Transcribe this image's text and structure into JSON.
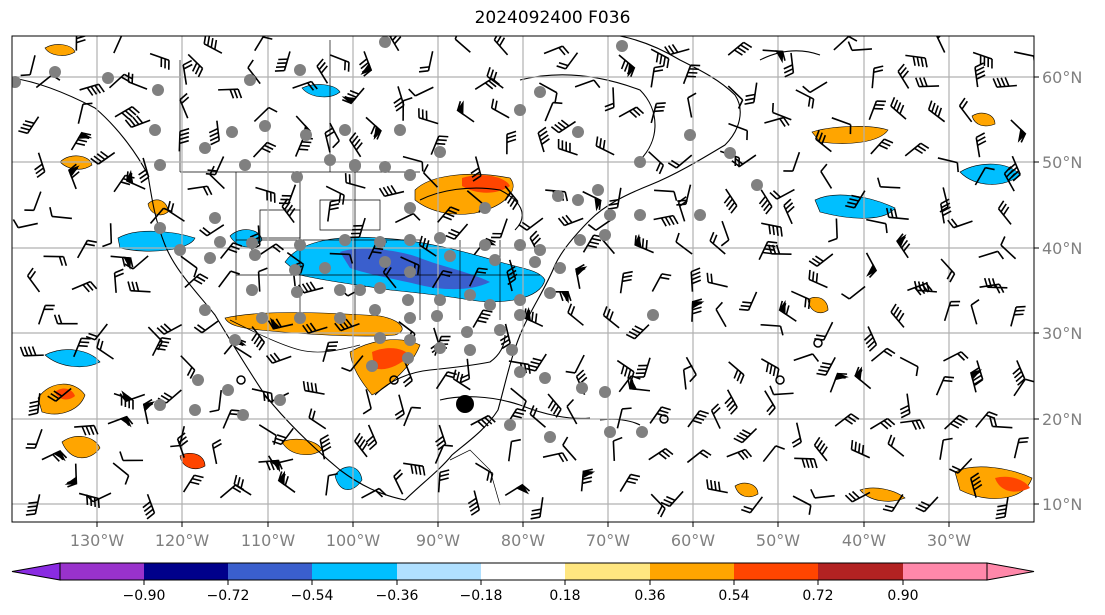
{
  "title": "2024092400 F036",
  "map": {
    "lat_labels": [
      "60°N",
      "50°N",
      "40°N",
      "30°N",
      "20°N",
      "10°N"
    ],
    "lon_labels": [
      "130°W",
      "120°W",
      "110°W",
      "100°W",
      "90°W",
      "80°W",
      "70°W",
      "60°W",
      "50°W",
      "40°W",
      "30°W"
    ],
    "grid": true
  },
  "colorbar": {
    "ticks": [
      "−0.90",
      "−0.72",
      "−0.54",
      "−0.36",
      "−0.18",
      "0.18",
      "0.36",
      "0.54",
      "0.72",
      "0.90"
    ],
    "colors": [
      "#8a2be2",
      "#9932cc",
      "#00008b",
      "#3a5fcd",
      "#00bfff",
      "#b0e0ff",
      "#ffffff",
      "#ffe680",
      "#ffa500",
      "#ff4500",
      "#b22222",
      "#ff88aa"
    ]
  },
  "colors": {
    "grid": "#b0b0b0",
    "coast": "#000000",
    "station_dot": "#808080",
    "storm_marker": "#000000"
  }
}
